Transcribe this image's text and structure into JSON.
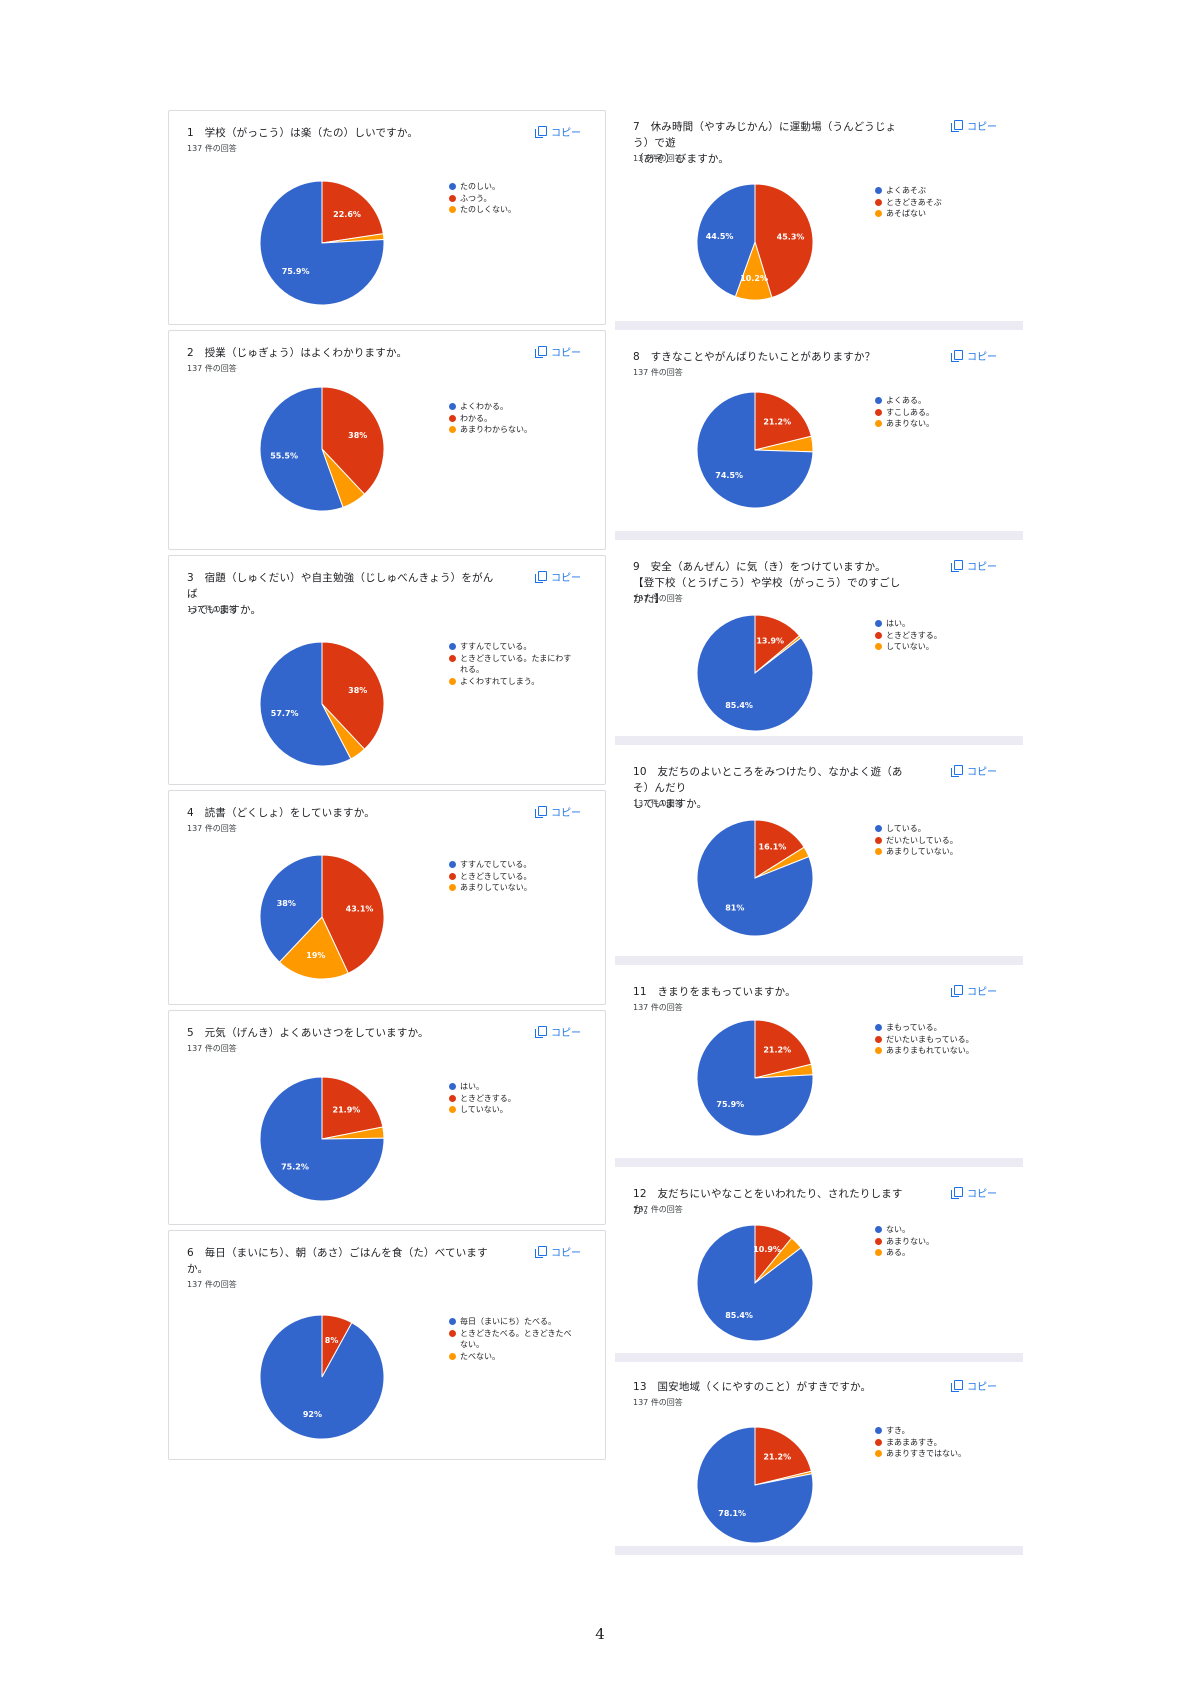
{
  "colors": {
    "c1": "#3366cc",
    "c2": "#dc3912",
    "c3": "#ff9900"
  },
  "copy_label": "コピー",
  "page_number": "4",
  "chart_data": [
    {
      "type": "pie",
      "num": "1",
      "title": "学校（がっこう）は楽（たの）しいですか。",
      "responses": "137 件の回答",
      "legend": [
        "たのしい。",
        "ふつう。",
        "たのしくない。"
      ],
      "values": [
        75.9,
        22.6,
        1.5
      ],
      "labels": [
        "75.9%",
        "22.6%",
        ""
      ]
    },
    {
      "type": "pie",
      "num": "2",
      "title": "授業（じゅぎょう）はよくわかりますか。",
      "responses": "137 件の回答",
      "legend": [
        "よくわかる。",
        "わかる。",
        "あまりわからない。"
      ],
      "values": [
        55.5,
        38,
        6.5
      ],
      "labels": [
        "55.5%",
        "38%",
        ""
      ]
    },
    {
      "type": "pie",
      "num": "3",
      "title": "宿題（しゅくだい）や自主勉強（じしゅべんきょう）をがんば\nっていますか。",
      "responses": "137 件の回答",
      "legend": [
        "すすんでしている。",
        "ときどきしている。たまにわす\nれる。",
        "よくわすれてしまう。"
      ],
      "values": [
        57.7,
        38,
        4.3
      ],
      "labels": [
        "57.7%",
        "38%",
        ""
      ]
    },
    {
      "type": "pie",
      "num": "4",
      "title": "読書（どくしょ）をしていますか。",
      "responses": "137 件の回答",
      "legend": [
        "すすんでしている。",
        "ときどきしている。",
        "あまりしていない。"
      ],
      "values": [
        38,
        43.1,
        19
      ],
      "labels": [
        "38%",
        "43.1%",
        "19%"
      ]
    },
    {
      "type": "pie",
      "num": "5",
      "title": "元気（げんき）よくあいさつをしていますか。",
      "responses": "137 件の回答",
      "legend": [
        "はい。",
        "ときどきする。",
        "していない。"
      ],
      "values": [
        75.2,
        21.9,
        2.9
      ],
      "labels": [
        "75.2%",
        "21.9%",
        ""
      ]
    },
    {
      "type": "pie",
      "num": "6",
      "title": "毎日（まいにち）、朝（あさ）ごはんを食（た）べていますか。",
      "responses": "137 件の回答",
      "legend": [
        "毎日（まいにち）たべる。",
        "ときどきたべる。ときどきたべ\nない。",
        "たべない。"
      ],
      "values": [
        92,
        8,
        0
      ],
      "labels": [
        "92%",
        "8%",
        ""
      ]
    },
    {
      "type": "pie",
      "num": "7",
      "title": "休み時間（やすみじかん）に運動場（うんどうじょう）で遊\n（あそ）びますか。",
      "responses": "137 件の回答",
      "legend": [
        "よくあそぶ",
        "ときどきあそぶ",
        "あそばない"
      ],
      "values": [
        44.5,
        45.3,
        10.2
      ],
      "labels": [
        "44.5%",
        "45.3%",
        "10.2%"
      ]
    },
    {
      "type": "pie",
      "num": "8",
      "title": "すきなことやがんばりたいことがありますか？",
      "responses": "137 件の回答",
      "legend": [
        "よくある。",
        "すこしある。",
        "あまりない。"
      ],
      "values": [
        74.5,
        21.2,
        4.3
      ],
      "labels": [
        "74.5%",
        "21.2%",
        ""
      ]
    },
    {
      "type": "pie",
      "num": "9",
      "title": "安全（あんぜん）に気（き）をつけていますか。\n【登下校（とうげこう）や学校（がっこう）でのすごしかた】",
      "responses": "137 件の回答",
      "legend": [
        "はい。",
        "ときどきする。",
        "していない。"
      ],
      "values": [
        85.4,
        13.9,
        0.7
      ],
      "labels": [
        "85.4%",
        "13.9%",
        ""
      ]
    },
    {
      "type": "pie",
      "num": "10",
      "title": "友だちのよいところをみつけたり、なかよく遊（あそ）んだり\nしていますか。",
      "responses": "137 件の回答",
      "legend": [
        "している。",
        "だいたいしている。",
        "あまりしていない。"
      ],
      "values": [
        81,
        16.1,
        2.9
      ],
      "labels": [
        "81%",
        "16.1%",
        ""
      ]
    },
    {
      "type": "pie",
      "num": "11",
      "title": "きまりをまもっていますか。",
      "responses": "137 件の回答",
      "legend": [
        "まもっている。",
        "だいたいまもっている。",
        "あまりまもれていない。"
      ],
      "values": [
        75.9,
        21.2,
        2.9
      ],
      "labels": [
        "75.9%",
        "21.2%",
        ""
      ]
    },
    {
      "type": "pie",
      "num": "12",
      "title": "友だちにいやなことをいわれたり、されたりしますか。",
      "responses": "137 件の回答",
      "legend": [
        "ない。",
        "あまりない。",
        "ある。"
      ],
      "values": [
        85.4,
        10.9,
        3.7
      ],
      "labels": [
        "85.4%",
        "10.9%",
        ""
      ]
    },
    {
      "type": "pie",
      "num": "13",
      "title": "国安地域（くにやすのこと）がすきですか。",
      "responses": "137 件の回答",
      "legend": [
        "すき。",
        "まあまあすき。",
        "あまりすきではない。"
      ],
      "values": [
        78.1,
        21.2,
        0.7
      ],
      "labels": [
        "78.1%",
        "21.2%",
        ""
      ]
    }
  ]
}
